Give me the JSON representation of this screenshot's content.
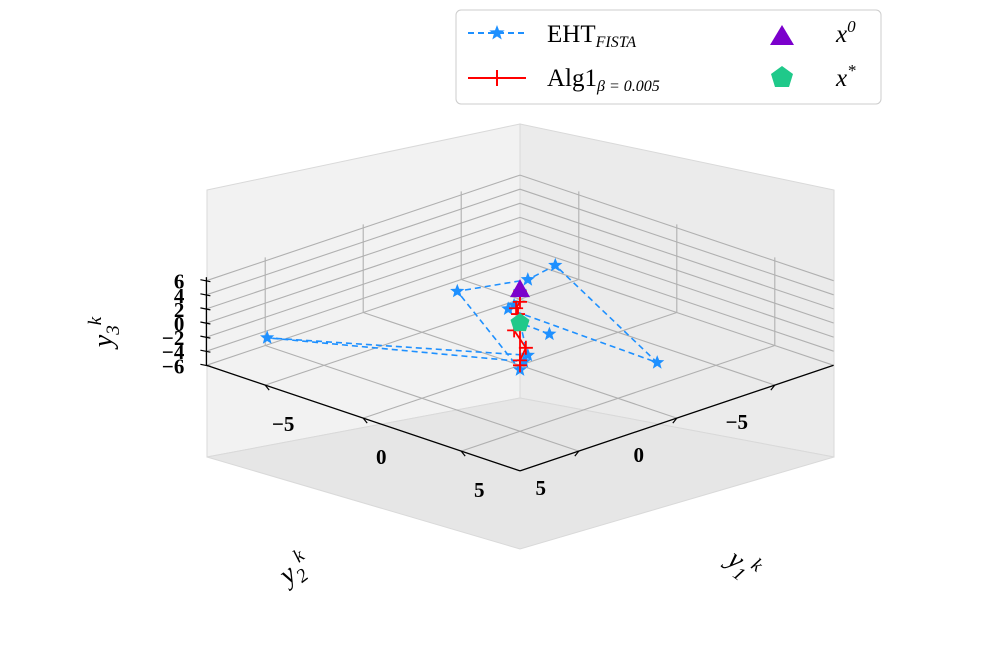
{
  "chart_data": {
    "type": "line",
    "projection": "3d",
    "xlabel": "y",
    "xlabel_sub": "1",
    "xlabel_sup": "k",
    "ylabel": "y",
    "ylabel_sub": "2",
    "ylabel_sup": "k",
    "zlabel": "y",
    "zlabel_sub": "3",
    "zlabel_sup": "k",
    "x_ticks": [
      {
        "value": -5,
        "label": "−5"
      },
      {
        "value": 0,
        "label": "0"
      },
      {
        "value": 5,
        "label": "5"
      }
    ],
    "y_ticks": [
      {
        "value": -5,
        "label": "−5"
      },
      {
        "value": 0,
        "label": "0"
      },
      {
        "value": 5,
        "label": "5"
      }
    ],
    "z_ticks": [
      {
        "value": -6,
        "label": "−6"
      },
      {
        "value": -4,
        "label": "−4"
      },
      {
        "value": -2,
        "label": "−2"
      },
      {
        "value": 0,
        "label": "0"
      },
      {
        "value": 2,
        "label": "2"
      },
      {
        "value": 4,
        "label": "4"
      },
      {
        "value": 6,
        "label": "6"
      }
    ],
    "xlim": [
      -8,
      8
    ],
    "ylim": [
      -8,
      8
    ],
    "zlim": [
      -6,
      6.5
    ],
    "grid": true,
    "legend_position": "top-right",
    "series": [
      {
        "name": "EHT",
        "name_sub": "FISTA",
        "color": "#1e90ff",
        "linestyle": "dashed",
        "marker": "star",
        "points": [
          [
            0,
            0,
            4.5
          ],
          [
            0,
            0.3,
            2.8
          ],
          [
            -0.3,
            0.3,
            2.0
          ],
          [
            6.5,
            -0.5,
            0.0
          ],
          [
            0,
            -1.8,
            6.5
          ],
          [
            0.6,
            0.2,
            6.9
          ],
          [
            -1.6,
            1.6,
            4.5
          ],
          [
            0.5,
            0.5,
            -5.7
          ],
          [
            0.2,
            0,
            -5.3
          ],
          [
            -6.4,
            6.5,
            -2.0
          ],
          [
            0.4,
            0,
            -4.2
          ],
          [
            0.1,
            0.1,
            0.2
          ],
          [
            1.0,
            -0.5,
            -1.1
          ]
        ]
      },
      {
        "name": "Alg1",
        "name_sub": "β = 0.005",
        "color": "#ff0000",
        "linestyle": "solid",
        "marker": "plus",
        "points": [
          [
            0,
            0,
            4.5
          ],
          [
            0,
            0,
            3.0
          ],
          [
            -0.2,
            0,
            1.9
          ],
          [
            -0.3,
            -0.2,
            0.8
          ],
          [
            -0.3,
            -0.4,
            -0.4
          ],
          [
            -0.5,
            -0.2,
            -1.7
          ],
          [
            0,
            -0.3,
            -3.8
          ],
          [
            0,
            0,
            -5.3
          ],
          [
            0,
            0,
            -6.0
          ],
          [
            0,
            0,
            0
          ]
        ]
      }
    ],
    "points": [
      {
        "name": "x",
        "sup": "0",
        "marker": "triangle",
        "color": "#7b00cc",
        "point": [
          0,
          0,
          4.8
        ]
      },
      {
        "name": "x",
        "sup": "*",
        "marker": "pentagon",
        "color": "#1fc98a",
        "point": [
          0,
          0,
          0
        ]
      }
    ]
  }
}
